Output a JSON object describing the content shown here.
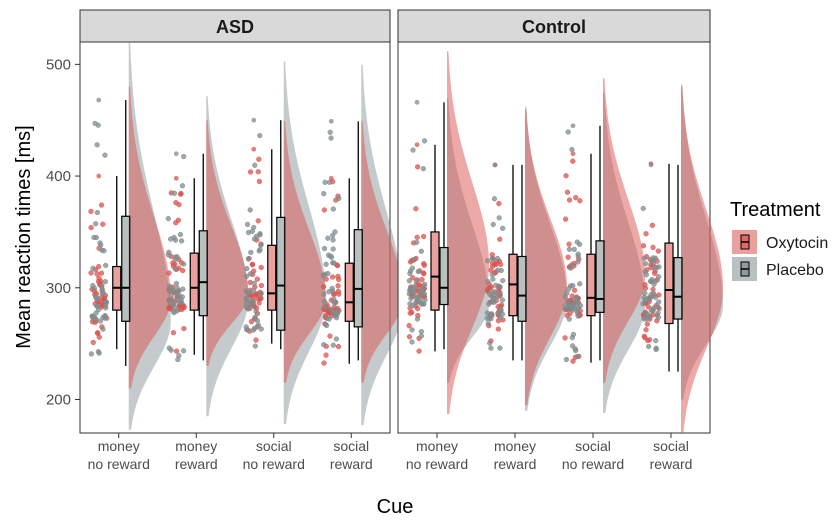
{
  "chart_data": {
    "type": "raincloud",
    "ylabel": "Mean reaction times [ms]",
    "xlabel": "Cue",
    "ylim": [
      170,
      520
    ],
    "yticks": [
      200,
      300,
      400,
      500
    ],
    "grid": false,
    "legend": {
      "title": "Treatment",
      "position": "right",
      "entries": [
        {
          "name": "Oxytocin",
          "color": "#d9534f"
        },
        {
          "name": "Placebo",
          "color": "#7f8c8d"
        }
      ]
    },
    "categories": [
      {
        "line1": "money",
        "line2": "no reward"
      },
      {
        "line1": "money",
        "line2": "reward"
      },
      {
        "line1": "social",
        "line2": "no reward"
      },
      {
        "line1": "social",
        "line2": "reward"
      }
    ],
    "panels": [
      {
        "title": "ASD",
        "groups": [
          {
            "oxytocin": {
              "min": 245,
              "q1": 280,
              "median": 300,
              "q3": 319,
              "max": 400,
              "mode": 290,
              "dmin": 210,
              "dmax": 480
            },
            "placebo": {
              "min": 230,
              "q1": 270,
              "median": 300,
              "q3": 364,
              "max": 468,
              "mode": 270,
              "dmin": 173,
              "dmax": 520
            }
          },
          {
            "oxytocin": {
              "min": 240,
              "q1": 280,
              "median": 300,
              "q3": 331,
              "max": 398,
              "mode": 295,
              "dmin": 230,
              "dmax": 450
            },
            "placebo": {
              "min": 235,
              "q1": 275,
              "median": 305,
              "q3": 351,
              "max": 420,
              "mode": 290,
              "dmin": 185,
              "dmax": 472
            }
          },
          {
            "oxytocin": {
              "min": 250,
              "q1": 280,
              "median": 295,
              "q3": 338,
              "max": 424,
              "mode": 290,
              "dmin": 215,
              "dmax": 450
            },
            "placebo": {
              "min": 245,
              "q1": 262,
              "median": 302,
              "q3": 363,
              "max": 450,
              "mode": 290,
              "dmin": 178,
              "dmax": 503
            }
          },
          {
            "oxytocin": {
              "min": 232,
              "q1": 270,
              "median": 287,
              "q3": 322,
              "max": 398,
              "mode": 290,
              "dmin": 215,
              "dmax": 450
            },
            "placebo": {
              "min": 235,
              "q1": 265,
              "median": 299,
              "q3": 352,
              "max": 449,
              "mode": 285,
              "dmin": 177,
              "dmax": 500
            }
          }
        ]
      },
      {
        "title": "Control",
        "groups": [
          {
            "oxytocin": {
              "min": 243,
              "q1": 280,
              "median": 310,
              "q3": 350,
              "max": 428,
              "mode": 320,
              "dmin": 187,
              "dmax": 512
            },
            "placebo": {
              "min": 245,
              "q1": 285,
              "median": 300,
              "q3": 336,
              "max": 466,
              "mode": 285,
              "dmin": 215,
              "dmax": 470
            }
          },
          {
            "oxytocin": {
              "min": 235,
              "q1": 275,
              "median": 303,
              "q3": 330,
              "max": 410,
              "mode": 300,
              "dmin": 195,
              "dmax": 460
            },
            "placebo": {
              "min": 235,
              "q1": 270,
              "median": 293,
              "q3": 328,
              "max": 410,
              "mode": 290,
              "dmin": 190,
              "dmax": 462
            }
          },
          {
            "oxytocin": {
              "min": 233,
              "q1": 275,
              "median": 291,
              "q3": 330,
              "max": 420,
              "mode": 310,
              "dmin": 215,
              "dmax": 488
            },
            "placebo": {
              "min": 235,
              "q1": 278,
              "median": 290,
              "q3": 342,
              "max": 445,
              "mode": 285,
              "dmin": 188,
              "dmax": 475
            }
          },
          {
            "oxytocin": {
              "min": 225,
              "q1": 268,
              "median": 298,
              "q3": 340,
              "max": 411,
              "mode": 300,
              "dmin": 170,
              "dmax": 480
            },
            "placebo": {
              "min": 225,
              "q1": 272,
              "median": 292,
              "q3": 327,
              "max": 410,
              "mode": 285,
              "dmin": 200,
              "dmax": 482
            }
          }
        ]
      }
    ]
  }
}
